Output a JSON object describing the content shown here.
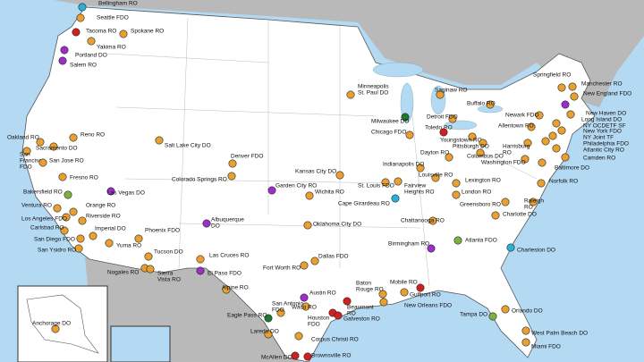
{
  "offices": [
    {
      "lines": [
        "Bellingham RO"
      ]
    },
    {
      "lines": [
        "Seattle FDO"
      ]
    },
    {
      "lines": [
        "Tacoma RO"
      ]
    },
    {
      "lines": [
        "Yakima RO"
      ]
    },
    {
      "lines": [
        "Spokane RO"
      ]
    },
    {
      "lines": [
        "Portland DO"
      ]
    },
    {
      "lines": [
        "Salem RO"
      ]
    },
    {
      "lines": [
        "Manchester RO"
      ]
    },
    {
      "lines": [
        "New England FDO"
      ]
    },
    {
      "lines": [
        "Springfield RO"
      ]
    },
    {
      "lines": [
        "Minneapolis",
        "St. Paul DO"
      ]
    },
    {
      "lines": [
        "Saginaw RO"
      ]
    },
    {
      "lines": [
        "Buffalo RO"
      ]
    },
    {
      "lines": [
        "New Haven DO"
      ]
    },
    {
      "lines": [
        "Long Island DO"
      ]
    },
    {
      "lines": [
        "Milwaukee DO"
      ]
    },
    {
      "lines": [
        "Detroit FDO"
      ]
    },
    {
      "lines": [
        "Newark FDO"
      ]
    },
    {
      "lines": [
        "NY OCDETF SF"
      ]
    },
    {
      "lines": [
        "Allentown RO"
      ]
    },
    {
      "lines": [
        "New York FDO"
      ]
    },
    {
      "lines": [
        "Oakland RO"
      ]
    },
    {
      "lines": [
        "Reno RO"
      ]
    },
    {
      "lines": [
        "Toledo RO"
      ]
    },
    {
      "lines": [
        "Chicago FDO"
      ]
    },
    {
      "lines": [
        "NY Joint TF"
      ]
    },
    {
      "lines": [
        "Philadelphia FDO"
      ]
    },
    {
      "lines": [
        "Atlantic City RO"
      ]
    },
    {
      "lines": [
        "Camden RO"
      ]
    },
    {
      "lines": [
        "Youngstown RO"
      ]
    },
    {
      "lines": [
        "Pittsburgh DO"
      ]
    },
    {
      "lines": [
        "Harrisburg",
        "RO"
      ]
    },
    {
      "lines": [
        "Sacramento DO"
      ]
    },
    {
      "lines": [
        "Salt Lake City DO"
      ]
    },
    {
      "lines": [
        "San",
        "Francisco",
        "FDO"
      ]
    },
    {
      "lines": [
        "Dayton RO"
      ]
    },
    {
      "lines": [
        "Columbus DO"
      ]
    },
    {
      "lines": [
        "Washington FDO"
      ]
    },
    {
      "lines": [
        "Baltimore DO"
      ]
    },
    {
      "lines": [
        "San Jose RO"
      ]
    },
    {
      "lines": [
        "Denver FDO"
      ]
    },
    {
      "lines": [
        "Indianapolis DO"
      ]
    },
    {
      "lines": [
        "Louisville RO"
      ]
    },
    {
      "lines": [
        "Kansas City DO"
      ]
    },
    {
      "lines": [
        "Colorado Springs RO"
      ]
    },
    {
      "lines": [
        "Fresno RO"
      ]
    },
    {
      "lines": [
        "St. Louis FDO"
      ]
    },
    {
      "lines": [
        "Fairview",
        "Heights RO"
      ]
    },
    {
      "lines": [
        "Norfolk RO"
      ]
    },
    {
      "lines": [
        "Bakersfield RO"
      ]
    },
    {
      "lines": [
        "Garden City RO"
      ]
    },
    {
      "lines": [
        "Wichita RO"
      ]
    },
    {
      "lines": [
        "Lexington RO"
      ]
    },
    {
      "lines": [
        "London RO"
      ]
    },
    {
      "lines": [
        "Las Vegas DO"
      ]
    },
    {
      "lines": [
        "Ventura RO"
      ]
    },
    {
      "lines": [
        "Cape Girardeau RO"
      ]
    },
    {
      "lines": [
        "Raleigh",
        "RO"
      ]
    },
    {
      "lines": [
        "Greensboro RO"
      ]
    },
    {
      "lines": [
        "Orange RO"
      ]
    },
    {
      "lines": [
        "Los Angeles FDO"
      ]
    },
    {
      "lines": [
        "Riverside RO"
      ]
    },
    {
      "lines": [
        "Charlotte DO"
      ]
    },
    {
      "lines": [
        "Albuquerque",
        "DO"
      ]
    },
    {
      "lines": [
        "Chattanooga RO"
      ]
    },
    {
      "lines": [
        "Oklahoma City DO"
      ]
    },
    {
      "lines": [
        "Carlsbad RO"
      ]
    },
    {
      "lines": [
        "Imperial DO"
      ]
    },
    {
      "lines": [
        "Phoenix FDO"
      ]
    },
    {
      "lines": [
        "Birmingham RO"
      ]
    },
    {
      "lines": [
        "Atlanta FDO"
      ]
    },
    {
      "lines": [
        "San Diego FDO"
      ]
    },
    {
      "lines": [
        "Yuma RO"
      ]
    },
    {
      "lines": [
        "Charleston DO"
      ]
    },
    {
      "lines": [
        "San Ysidro RO"
      ]
    },
    {
      "lines": [
        "Tucson DO"
      ]
    },
    {
      "lines": [
        "Las Cruces RO"
      ]
    },
    {
      "lines": [
        "Dallas FDO"
      ]
    },
    {
      "lines": [
        "Fort Worth RO"
      ]
    },
    {
      "lines": [
        "Nogales RO"
      ]
    },
    {
      "lines": [
        "El Paso FDO"
      ]
    },
    {
      "lines": [
        "Sierra",
        "Vista RO"
      ]
    },
    {
      "lines": [
        "Alpine RO"
      ]
    },
    {
      "lines": [
        "Austin RO"
      ]
    },
    {
      "lines": [
        "Baton",
        "Rouge RO"
      ]
    },
    {
      "lines": [
        "Mobile RO"
      ]
    },
    {
      "lines": [
        "Gulfport RO"
      ]
    },
    {
      "lines": [
        "New Orleans FDO"
      ]
    },
    {
      "lines": [
        "Waco RO"
      ]
    },
    {
      "lines": [
        "Beaumont",
        "RO"
      ]
    },
    {
      "lines": [
        "Tampa DO"
      ]
    },
    {
      "lines": [
        "Orlando DO"
      ]
    },
    {
      "lines": [
        "Eagle Pass RO"
      ]
    },
    {
      "lines": [
        "San Antonio",
        "FDO"
      ]
    },
    {
      "lines": [
        "Houston",
        "FDO"
      ]
    },
    {
      "lines": [
        "Galveston RO"
      ]
    },
    {
      "lines": [
        "Anchorage DO"
      ]
    },
    {
      "lines": [
        "West Palm Beach DO"
      ]
    },
    {
      "lines": [
        "Laredo DO"
      ]
    },
    {
      "lines": [
        "Corpus Christi RO"
      ]
    },
    {
      "lines": [
        "Miami FDO"
      ]
    },
    {
      "lines": [
        "McAllen DO"
      ]
    },
    {
      "lines": [
        "Brownsville RO"
      ]
    }
  ]
}
